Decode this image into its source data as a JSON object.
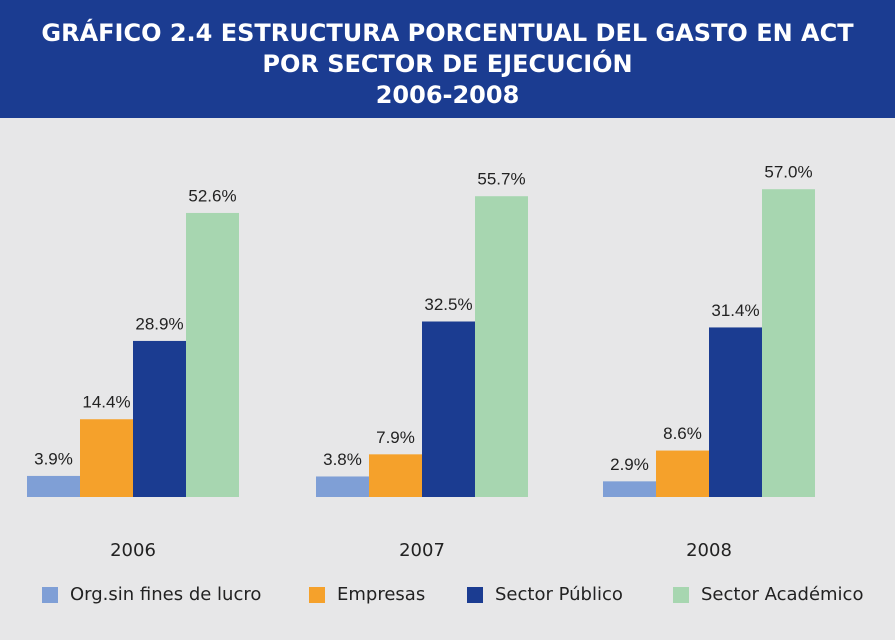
{
  "chart_data": {
    "type": "bar",
    "title": [
      "GRÁFICO 2.4  ESTRUCTURA PORCENTUAL DEL GASTO EN ACT",
      "POR SECTOR DE EJECUCIÓN",
      "2006-2008"
    ],
    "categories": [
      "2006",
      "2007",
      "2008"
    ],
    "series": [
      {
        "name": "Org.sin fines de lucro",
        "color": "#7f9fd6",
        "values": [
          3.9,
          3.8,
          2.9
        ],
        "value_labels": [
          "3.9%",
          "3.8%",
          "2.9%"
        ]
      },
      {
        "name": "Empresas",
        "color": "#f5a12b",
        "values": [
          14.4,
          7.9,
          8.6
        ],
        "value_labels": [
          "14.4%",
          "7.9%",
          "8.6%"
        ]
      },
      {
        "name": "Sector Público",
        "color": "#1b3c91",
        "values": [
          28.9,
          32.5,
          31.4
        ],
        "value_labels": [
          "28.9%",
          "32.5%",
          "31.4%"
        ]
      },
      {
        "name": "Sector Académico",
        "color": "#a7d6b0",
        "values": [
          52.6,
          55.7,
          57.0
        ],
        "value_labels": [
          "52.6%",
          "55.7%",
          "57.0%"
        ]
      }
    ]
  }
}
